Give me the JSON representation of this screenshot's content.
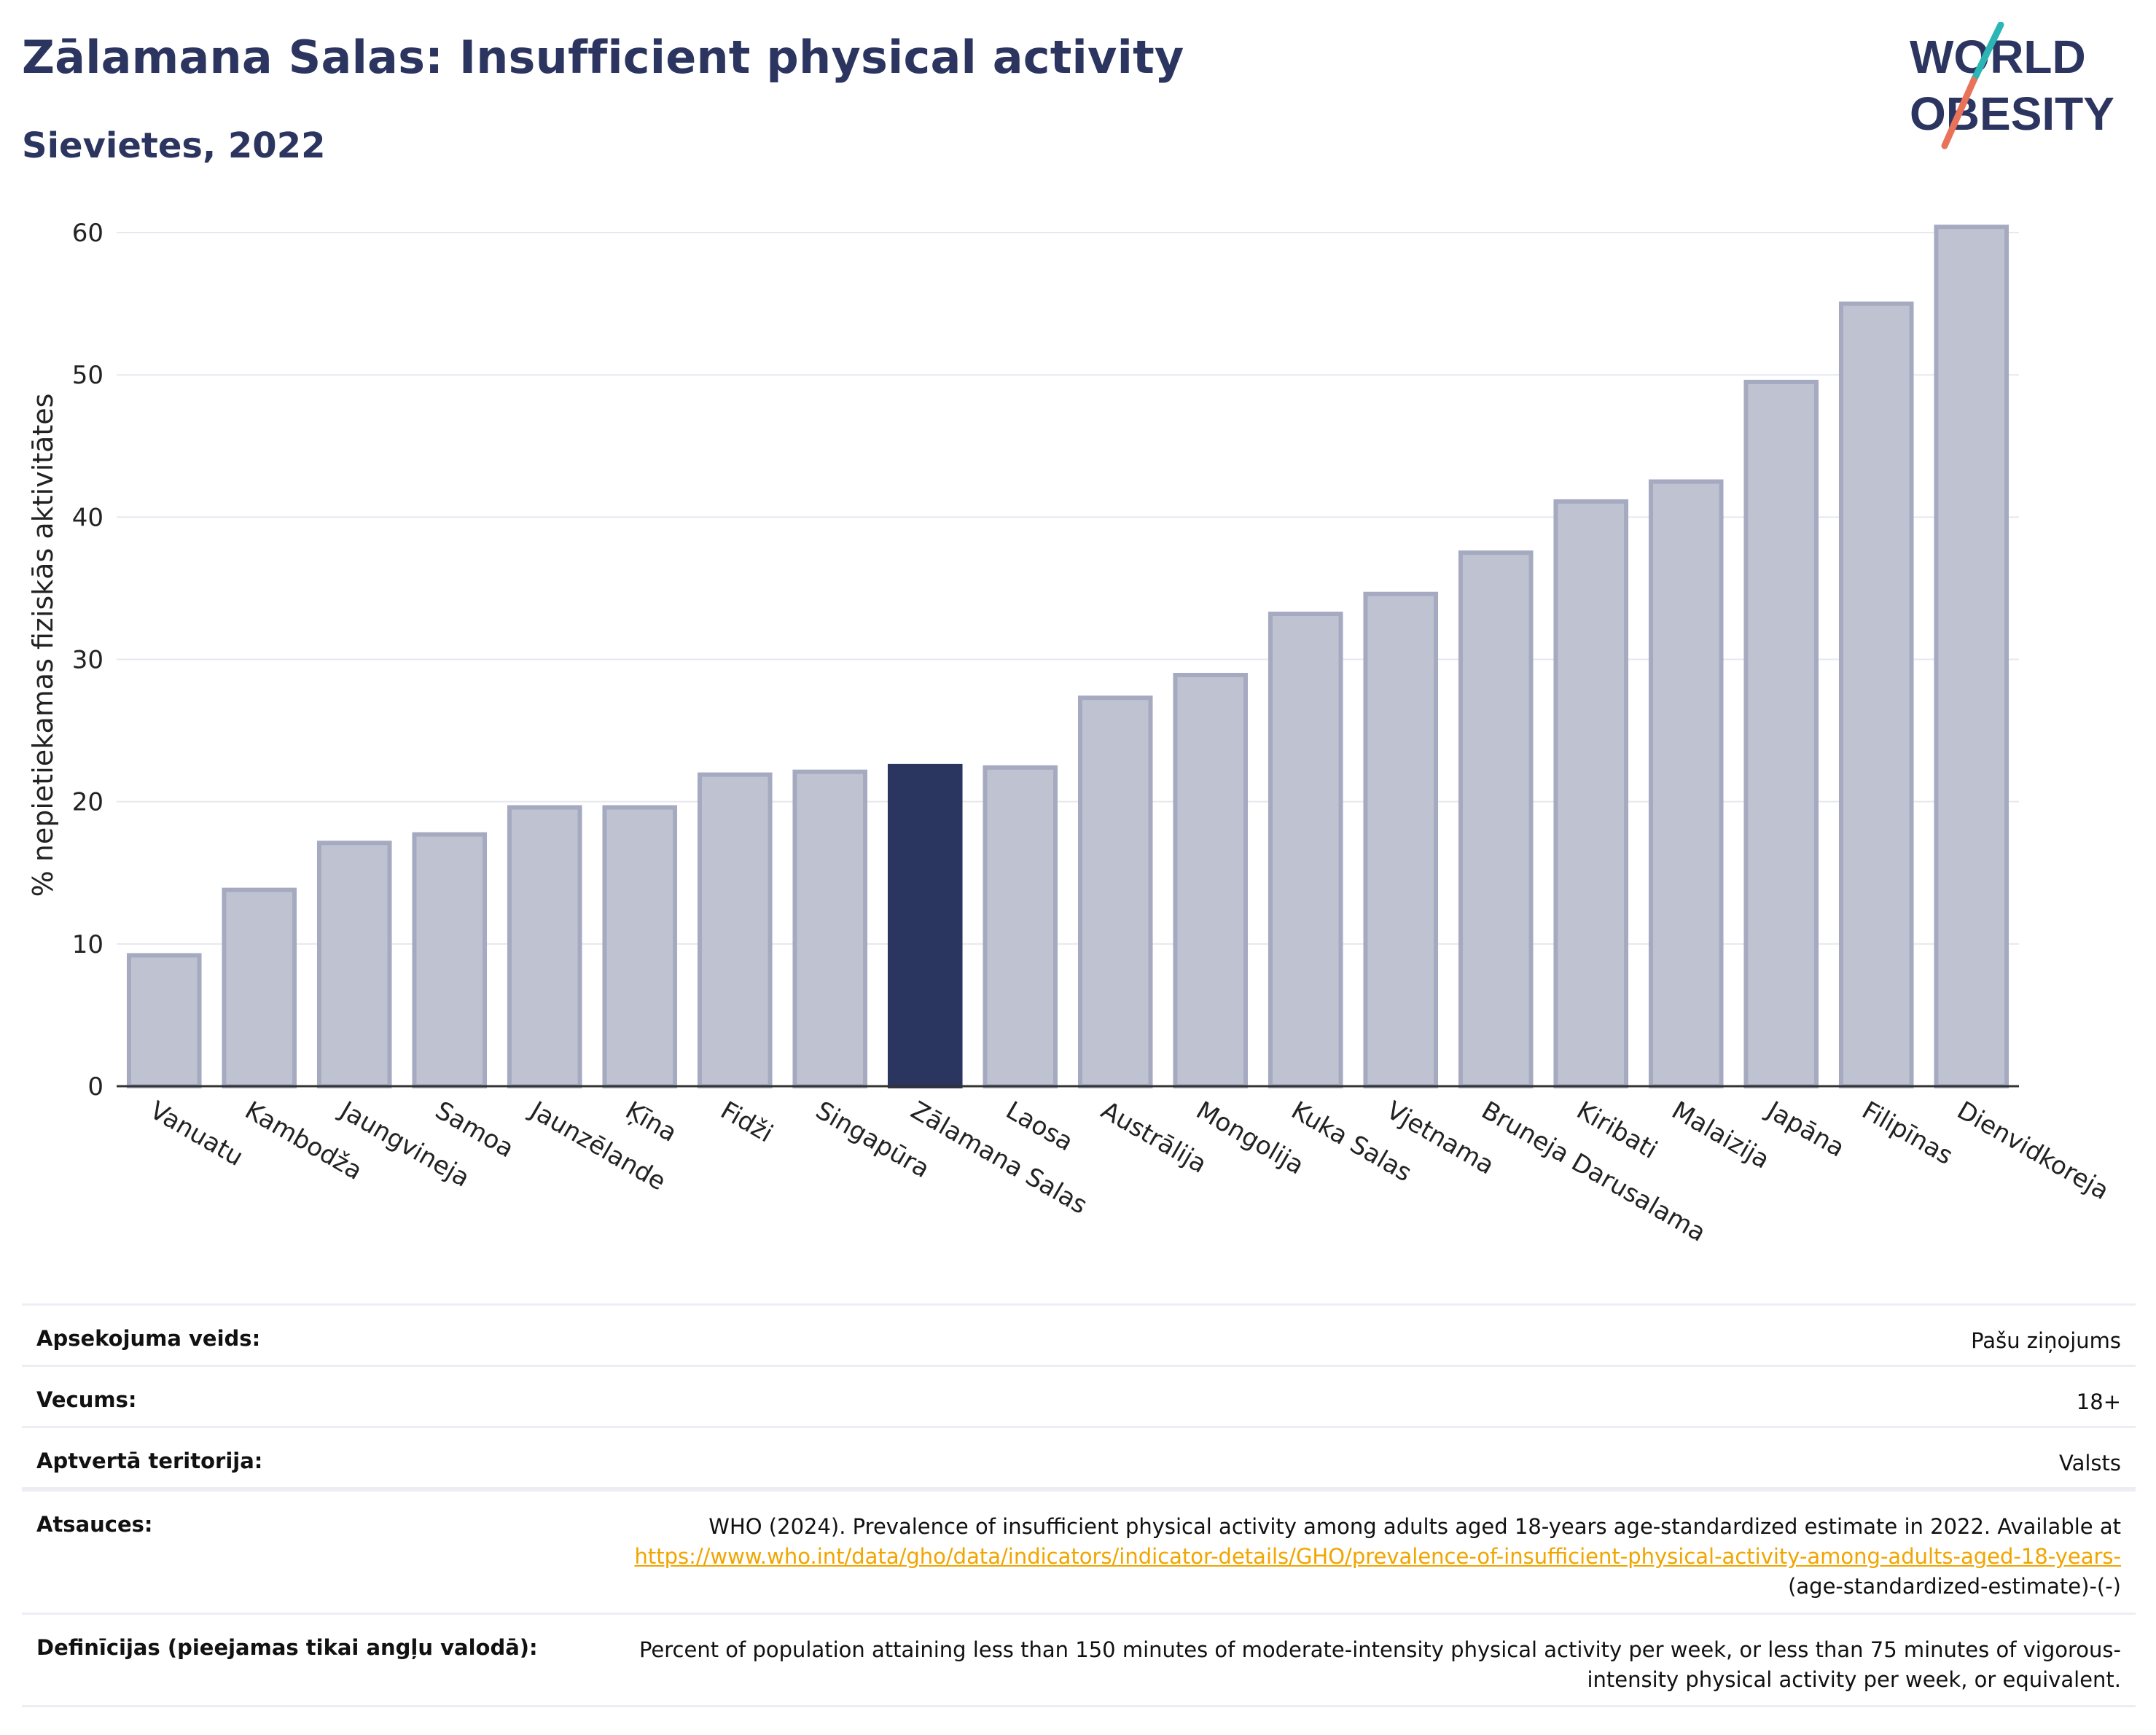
{
  "header": {
    "title": "Zālamana Salas: Insufficient physical activity",
    "subtitle": "Sievietes, 2022",
    "logo_line1": "WORLD",
    "logo_line2": "OBESITY"
  },
  "colors": {
    "title": "#2b3560",
    "bar": "#bfc3d1",
    "bar_stroke": "#a5aac0",
    "highlight": "#2a3560",
    "logo_teal": "#2bb5b5",
    "logo_coral": "#e8735a",
    "link": "#f0a500"
  },
  "chart_data": {
    "type": "bar",
    "ylabel": "% nepietiekamas fiziskās aktivitātes",
    "ylim": [
      0,
      62
    ],
    "yticks": [
      0,
      10,
      20,
      30,
      40,
      50,
      60
    ],
    "grid": true,
    "highlight": "Zālamana Salas",
    "categories": [
      "Vanuatu",
      "Kambodža",
      "Jaungvineja",
      "Samoa",
      "Jaunzēlande",
      "Ķīna",
      "Fidži",
      "Singapūra",
      "Zālamana Salas",
      "Laosa",
      "Austrālija",
      "Mongolija",
      "Kuka Salas",
      "Vjetnama",
      "Bruneja Darusalama",
      "Kiribati",
      "Malaizija",
      "Japāna",
      "Filipīnas",
      "Dienvidkoreja"
    ],
    "values": [
      9.2,
      13.8,
      17.1,
      17.7,
      19.6,
      19.6,
      21.9,
      22.1,
      22.5,
      22.4,
      27.3,
      28.9,
      33.2,
      34.6,
      37.5,
      41.1,
      42.5,
      49.5,
      55.0,
      60.4
    ]
  },
  "meta": {
    "rows": [
      {
        "label": "Apsekojuma veids:",
        "value": "Pašu ziņojums"
      },
      {
        "label": "Vecums:",
        "value": "18+"
      },
      {
        "label": "Aptvertā teritorija:",
        "value": "Valsts"
      }
    ],
    "sources_label": "Atsauces:",
    "sources_text": "WHO (2024). Prevalence of insufficient physical activity among adults aged 18-years age-standardized estimate in 2022. Available at",
    "sources_link": "https://www.who.int/data/gho/data/indicators/indicator-details/GHO/prevalence-of-insufficient-physical-activity-among-adults-aged-18-years-",
    "sources_suffix": "(age-standardized-estimate)-(-)",
    "definitions_label": "Definīcijas (pieejamas tikai angļu valodā):",
    "definitions_text": "Percent of population attaining less than 150 minutes of moderate-intensity physical activity per week, or less than 75 minutes of vigorous-intensity physical activity per week, or equivalent."
  }
}
